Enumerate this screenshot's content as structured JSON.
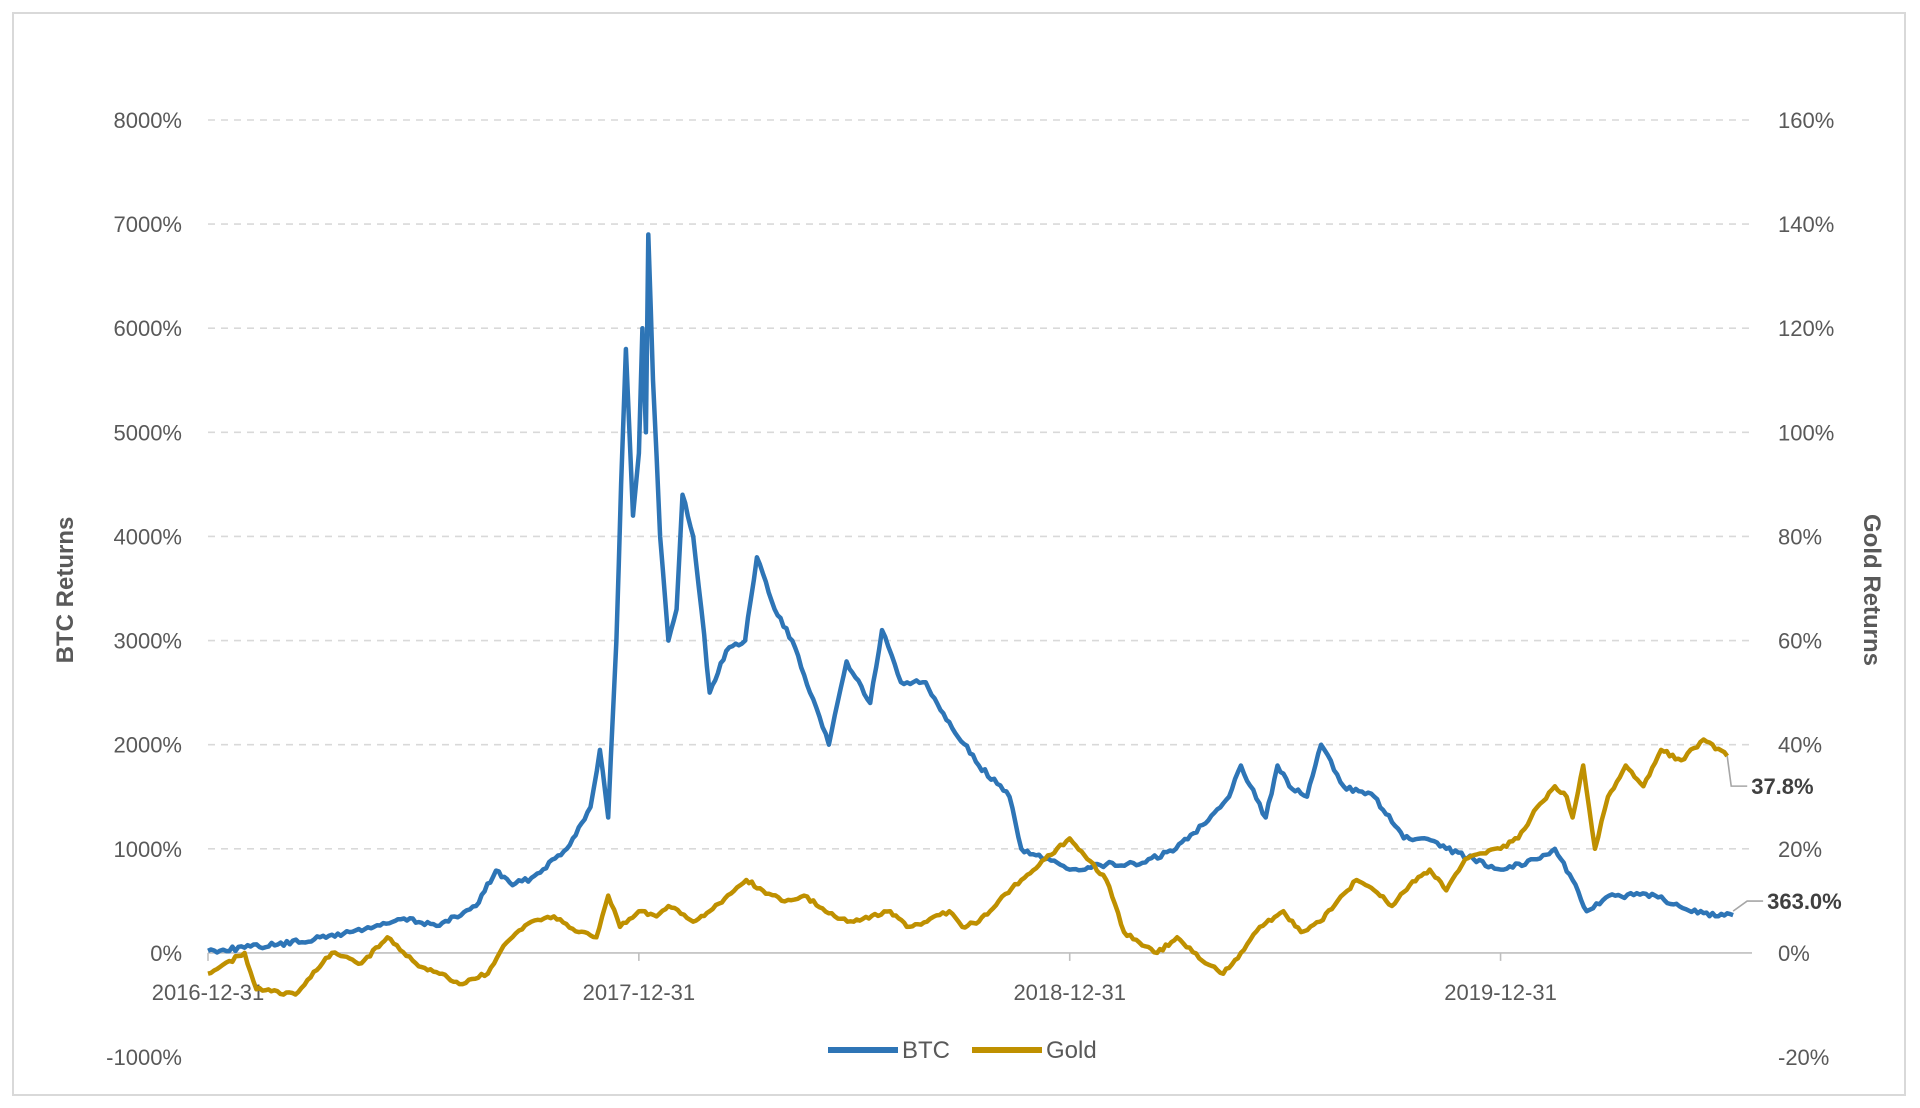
{
  "chart_data": {
    "type": "line",
    "title": "",
    "ylabel": "BTC Returns",
    "y2label": "Gold Returns",
    "grid": true,
    "legend_position": "bottom",
    "x_ticks": [
      "2016-12-31",
      "2017-12-31",
      "2018-12-31",
      "2019-12-31"
    ],
    "y_ticks": [
      "8000%",
      "7000%",
      "6000%",
      "5000%",
      "4000%",
      "3000%",
      "2000%",
      "1000%",
      "0%",
      "-1000%"
    ],
    "y2_ticks": [
      "160%",
      "140%",
      "120%",
      "100%",
      "80%",
      "60%",
      "40%",
      "20%",
      "0%",
      "-20%"
    ],
    "ylim": [
      -1000,
      8000
    ],
    "y2lim": [
      -20,
      160
    ],
    "series": [
      {
        "name": "BTC",
        "axis": "left",
        "color": "#2e75b6",
        "end_label": "363.0%",
        "points": [
          [
            "2016-12-31",
            20
          ],
          [
            "2017-01-31",
            50
          ],
          [
            "2017-02-28",
            80
          ],
          [
            "2017-03-31",
            130
          ],
          [
            "2017-04-30",
            200
          ],
          [
            "2017-05-31",
            280
          ],
          [
            "2017-06-15",
            330
          ],
          [
            "2017-07-15",
            260
          ],
          [
            "2017-08-15",
            450
          ],
          [
            "2017-09-01",
            790
          ],
          [
            "2017-09-15",
            650
          ],
          [
            "2017-10-01",
            720
          ],
          [
            "2017-10-31",
            1000
          ],
          [
            "2017-11-20",
            1400
          ],
          [
            "2017-11-28",
            1950
          ],
          [
            "2017-12-05",
            1300
          ],
          [
            "2017-12-12",
            3000
          ],
          [
            "2017-12-16",
            4500
          ],
          [
            "2017-12-20",
            5800
          ],
          [
            "2017-12-26",
            4200
          ],
          [
            "2017-12-31",
            4800
          ],
          [
            "2018-01-03",
            6000
          ],
          [
            "2018-01-06",
            5000
          ],
          [
            "2018-01-08",
            6900
          ],
          [
            "2018-01-12",
            5500
          ],
          [
            "2018-01-18",
            4000
          ],
          [
            "2018-01-25",
            3000
          ],
          [
            "2018-02-01",
            3300
          ],
          [
            "2018-02-06",
            4400
          ],
          [
            "2018-02-15",
            4000
          ],
          [
            "2018-02-22",
            3300
          ],
          [
            "2018-03-01",
            2500
          ],
          [
            "2018-03-15",
            2900
          ],
          [
            "2018-03-31",
            3000
          ],
          [
            "2018-04-10",
            3800
          ],
          [
            "2018-04-25",
            3300
          ],
          [
            "2018-05-10",
            3000
          ],
          [
            "2018-05-25",
            2500
          ],
          [
            "2018-06-10",
            2000
          ],
          [
            "2018-06-25",
            2800
          ],
          [
            "2018-07-15",
            2400
          ],
          [
            "2018-07-25",
            3100
          ],
          [
            "2018-08-10",
            2600
          ],
          [
            "2018-08-31",
            2600
          ],
          [
            "2018-09-15",
            2300
          ],
          [
            "2018-10-15",
            1800
          ],
          [
            "2018-11-10",
            1500
          ],
          [
            "2018-11-20",
            1000
          ],
          [
            "2018-12-10",
            900
          ],
          [
            "2018-12-31",
            800
          ],
          [
            "2019-01-31",
            850
          ],
          [
            "2019-02-28",
            850
          ],
          [
            "2019-03-31",
            1000
          ],
          [
            "2019-04-15",
            1150
          ],
          [
            "2019-05-15",
            1500
          ],
          [
            "2019-05-25",
            1800
          ],
          [
            "2019-06-15",
            1300
          ],
          [
            "2019-06-25",
            1800
          ],
          [
            "2019-07-05",
            1600
          ],
          [
            "2019-07-20",
            1500
          ],
          [
            "2019-08-01",
            2000
          ],
          [
            "2019-08-20",
            1600
          ],
          [
            "2019-09-15",
            1500
          ],
          [
            "2019-10-10",
            1100
          ],
          [
            "2019-10-25",
            1100
          ],
          [
            "2019-11-15",
            1000
          ],
          [
            "2019-12-31",
            800
          ],
          [
            "2020-01-31",
            900
          ],
          [
            "2020-02-15",
            1000
          ],
          [
            "2020-03-01",
            700
          ],
          [
            "2020-03-13",
            400
          ],
          [
            "2020-04-01",
            550
          ],
          [
            "2020-05-10",
            550
          ],
          [
            "2020-06-15",
            380
          ],
          [
            "2020-07-15",
            363
          ]
        ]
      },
      {
        "name": "Gold",
        "axis": "right",
        "color": "#bf9000",
        "end_label": "37.8%",
        "points": [
          [
            "2016-12-31",
            -4
          ],
          [
            "2017-01-31",
            0
          ],
          [
            "2017-02-10",
            -7
          ],
          [
            "2017-03-15",
            -8
          ],
          [
            "2017-04-15",
            0
          ],
          [
            "2017-05-10",
            -2
          ],
          [
            "2017-06-01",
            3
          ],
          [
            "2017-06-25",
            -2
          ],
          [
            "2017-07-15",
            -4
          ],
          [
            "2017-08-01",
            -6
          ],
          [
            "2017-08-25",
            -4
          ],
          [
            "2017-09-10",
            2
          ],
          [
            "2017-10-01",
            6
          ],
          [
            "2017-10-20",
            7
          ],
          [
            "2017-11-10",
            4
          ],
          [
            "2017-11-25",
            3
          ],
          [
            "2017-12-05",
            11
          ],
          [
            "2017-12-15",
            5
          ],
          [
            "2017-12-31",
            8
          ],
          [
            "2018-01-15",
            7
          ],
          [
            "2018-01-25",
            9
          ],
          [
            "2018-02-15",
            6
          ],
          [
            "2018-03-01",
            8
          ],
          [
            "2018-04-01",
            14
          ],
          [
            "2018-04-15",
            12
          ],
          [
            "2018-05-01",
            10
          ],
          [
            "2018-05-20",
            11
          ],
          [
            "2018-06-15",
            7
          ],
          [
            "2018-07-01",
            6
          ],
          [
            "2018-08-01",
            8
          ],
          [
            "2018-08-15",
            5
          ],
          [
            "2018-09-01",
            6
          ],
          [
            "2018-09-20",
            8
          ],
          [
            "2018-10-01",
            5
          ],
          [
            "2018-10-15",
            6
          ],
          [
            "2018-11-01",
            10
          ],
          [
            "2018-11-20",
            14
          ],
          [
            "2018-12-10",
            18
          ],
          [
            "2018-12-31",
            22
          ],
          [
            "2019-01-15",
            18
          ],
          [
            "2019-01-31",
            14
          ],
          [
            "2019-02-15",
            4
          ],
          [
            "2019-02-28",
            2
          ],
          [
            "2019-03-15",
            0
          ],
          [
            "2019-04-01",
            3
          ],
          [
            "2019-04-25",
            -2
          ],
          [
            "2019-05-10",
            -4
          ],
          [
            "2019-05-25",
            0
          ],
          [
            "2019-06-10",
            5
          ],
          [
            "2019-06-30",
            8
          ],
          [
            "2019-07-15",
            4
          ],
          [
            "2019-07-31",
            6
          ],
          [
            "2019-08-15",
            10
          ],
          [
            "2019-08-31",
            14
          ],
          [
            "2019-09-15",
            12
          ],
          [
            "2019-09-30",
            9
          ],
          [
            "2019-10-15",
            13
          ],
          [
            "2019-11-01",
            16
          ],
          [
            "2019-11-15",
            12
          ],
          [
            "2019-12-01",
            18
          ],
          [
            "2019-12-31",
            20
          ],
          [
            "2020-01-15",
            22
          ],
          [
            "2020-01-31",
            28
          ],
          [
            "2020-02-15",
            32
          ],
          [
            "2020-02-25",
            30
          ],
          [
            "2020-03-01",
            26
          ],
          [
            "2020-03-10",
            36
          ],
          [
            "2020-03-20",
            20
          ],
          [
            "2020-03-31",
            30
          ],
          [
            "2020-04-15",
            36
          ],
          [
            "2020-04-30",
            32
          ],
          [
            "2020-05-15",
            39
          ],
          [
            "2020-06-01",
            37
          ],
          [
            "2020-06-20",
            41
          ],
          [
            "2020-07-10",
            37.8
          ]
        ]
      }
    ]
  }
}
